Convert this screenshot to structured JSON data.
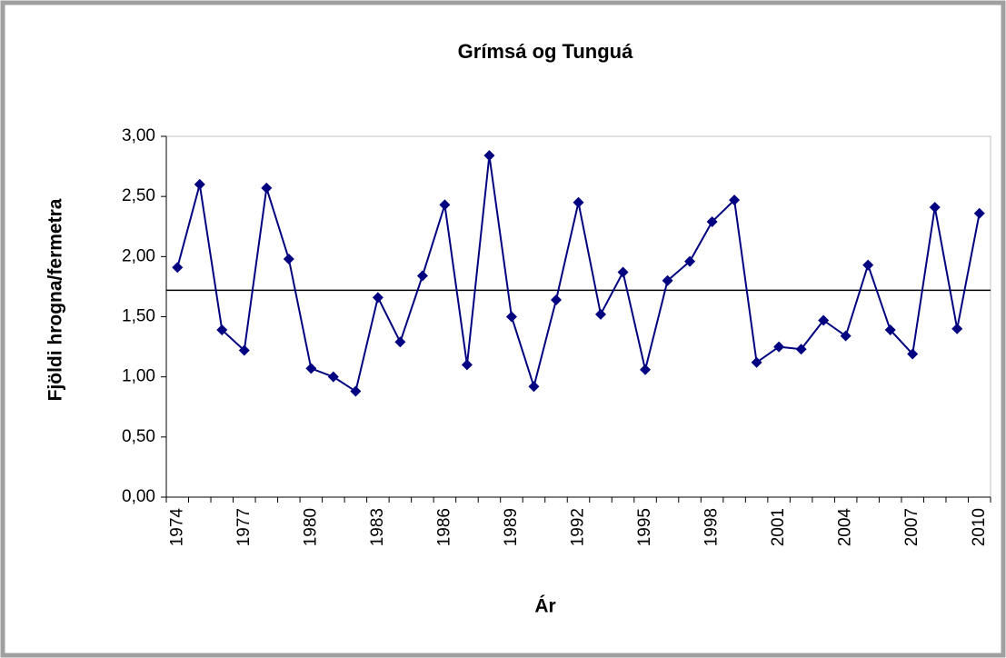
{
  "chart_data": {
    "type": "line",
    "title": "Grímsá og Tunguá",
    "x_label": "Ár",
    "y_label": "Fjöldi hrogna/fermetra",
    "categories": [
      "1974",
      null,
      null,
      "1977",
      null,
      null,
      "1980",
      null,
      null,
      "1983",
      null,
      null,
      "1986",
      null,
      null,
      "1989",
      null,
      null,
      "1992",
      null,
      null,
      "1995",
      null,
      null,
      "1998",
      null,
      null,
      "2001",
      null,
      null,
      "2004",
      null,
      null,
      "2007",
      null,
      null,
      "2010"
    ],
    "series": [
      {
        "color": "#000080",
        "values": [
          1.91,
          2.6,
          1.39,
          1.22,
          2.57,
          1.98,
          1.07,
          1.0,
          0.88,
          1.66,
          1.29,
          1.84,
          2.43,
          1.1,
          2.84,
          1.5,
          0.92,
          1.64,
          2.45,
          1.52,
          1.87,
          1.06,
          1.8,
          1.96,
          2.29,
          2.47,
          1.12,
          1.25,
          1.23,
          1.47,
          1.34,
          1.93,
          1.39,
          1.19,
          2.41,
          1.4,
          2.36
        ]
      }
    ],
    "reference_line": {
      "value": 1.72,
      "color": "#000000"
    },
    "ylim": [
      0,
      3
    ],
    "yticks": [
      {
        "value": 0,
        "label": "0,00"
      },
      {
        "value": 0.5,
        "label": "0,50"
      },
      {
        "value": 1,
        "label": "1,00"
      },
      {
        "value": 1.5,
        "label": "1,50"
      },
      {
        "value": 2,
        "label": "2,00"
      },
      {
        "value": 2.5,
        "label": "2,50"
      },
      {
        "value": 3,
        "label": "3,00"
      }
    ]
  }
}
